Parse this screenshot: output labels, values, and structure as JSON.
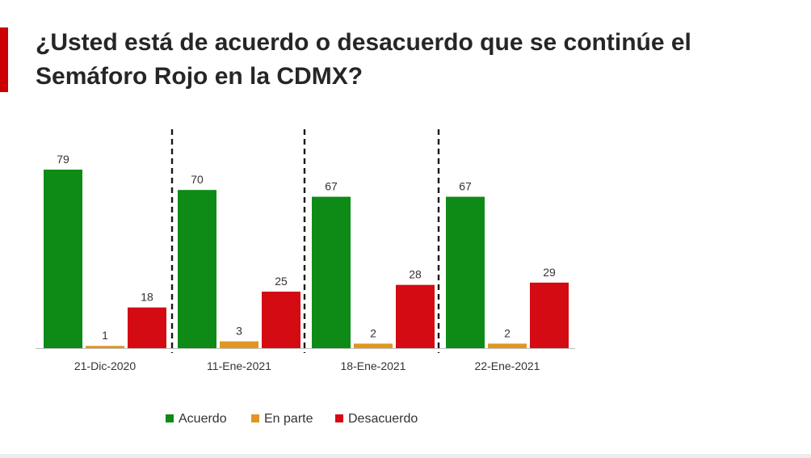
{
  "title_lines": [
    "¿Usted está de acuerdo o desacuerdo que se continúe el",
    "Semáforo Rojo en la CDMX?"
  ],
  "colors": {
    "accent": "#cc0000",
    "acuerdo": "#0e8a16",
    "en_parte": "#e0961f",
    "desacuerdo": "#d40b12"
  },
  "chart_data": {
    "type": "bar",
    "title": "¿Usted está de acuerdo o desacuerdo que se continúe el Semáforo Rojo en la CDMX?",
    "categories": [
      "21-Dic-2020",
      "11-Ene-2021",
      "18-Ene-2021",
      "22-Ene-2021"
    ],
    "series": [
      {
        "name": "Acuerdo",
        "values": [
          79,
          70,
          67,
          67
        ]
      },
      {
        "name": "En parte",
        "values": [
          1,
          3,
          2,
          2
        ]
      },
      {
        "name": "Desacuerdo",
        "values": [
          18,
          25,
          28,
          29
        ]
      }
    ],
    "ylim": [
      0,
      85
    ],
    "grid": false,
    "data_labels": true,
    "separators": "dashed-vertical-between-categories",
    "legend_position": "bottom"
  }
}
